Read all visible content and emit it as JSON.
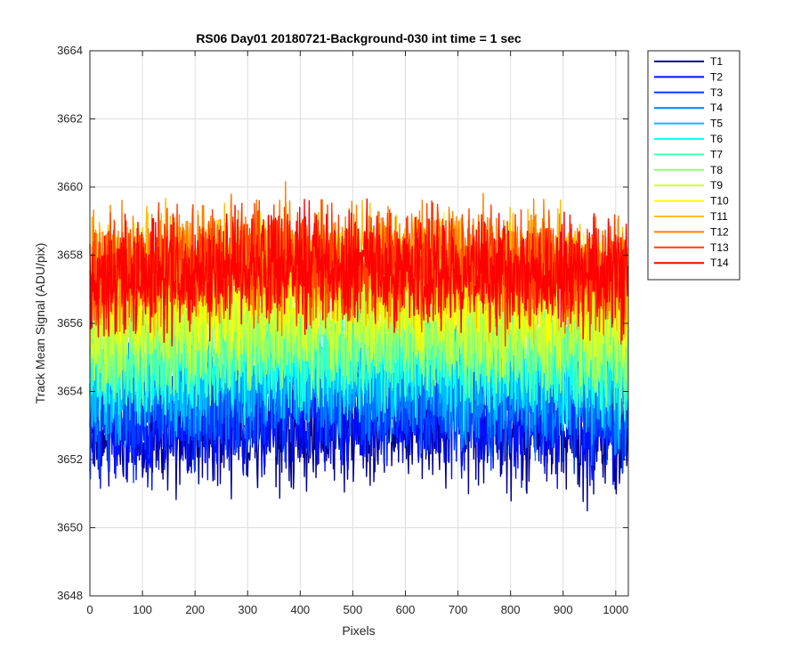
{
  "chart_data": {
    "type": "line",
    "title": "RS06 Day01 20180721-Background-030 int time = 1 sec",
    "xlabel": "Pixels",
    "ylabel": "Track Mean Signal (ADU/pix)",
    "xlim": [
      0,
      1024
    ],
    "ylim": [
      3648,
      3664
    ],
    "xticks": [
      0,
      100,
      200,
      300,
      400,
      500,
      600,
      700,
      800,
      900,
      1000
    ],
    "yticks": [
      3648,
      3650,
      3652,
      3654,
      3656,
      3658,
      3660,
      3662,
      3664
    ],
    "grid": true,
    "legend_position": "outside-top-right",
    "n_points": 1024,
    "noise_amplitude": 1.6,
    "series": [
      {
        "name": "T1",
        "color": "#00008f",
        "mean": 3652.6
      },
      {
        "name": "T2",
        "color": "#0010ff",
        "mean": 3653.0
      },
      {
        "name": "T3",
        "color": "#0040ff",
        "mean": 3653.4
      },
      {
        "name": "T4",
        "color": "#0080ff",
        "mean": 3653.9
      },
      {
        "name": "T5",
        "color": "#00bfff",
        "mean": 3654.3
      },
      {
        "name": "T6",
        "color": "#10ffef",
        "mean": 3654.7
      },
      {
        "name": "T7",
        "color": "#50ffaf",
        "mean": 3655.1
      },
      {
        "name": "T8",
        "color": "#8fff70",
        "mean": 3655.5
      },
      {
        "name": "T9",
        "color": "#cfff30",
        "mean": 3655.9
      },
      {
        "name": "T10",
        "color": "#ffff00",
        "mean": 3656.8
      },
      {
        "name": "T11",
        "color": "#ffbf00",
        "mean": 3657.3
      },
      {
        "name": "T12",
        "color": "#ff8000",
        "mean": 3657.5
      },
      {
        "name": "T13",
        "color": "#ff4000",
        "mean": 3657.4
      },
      {
        "name": "T14",
        "color": "#ff0000",
        "mean": 3657.3
      }
    ]
  }
}
